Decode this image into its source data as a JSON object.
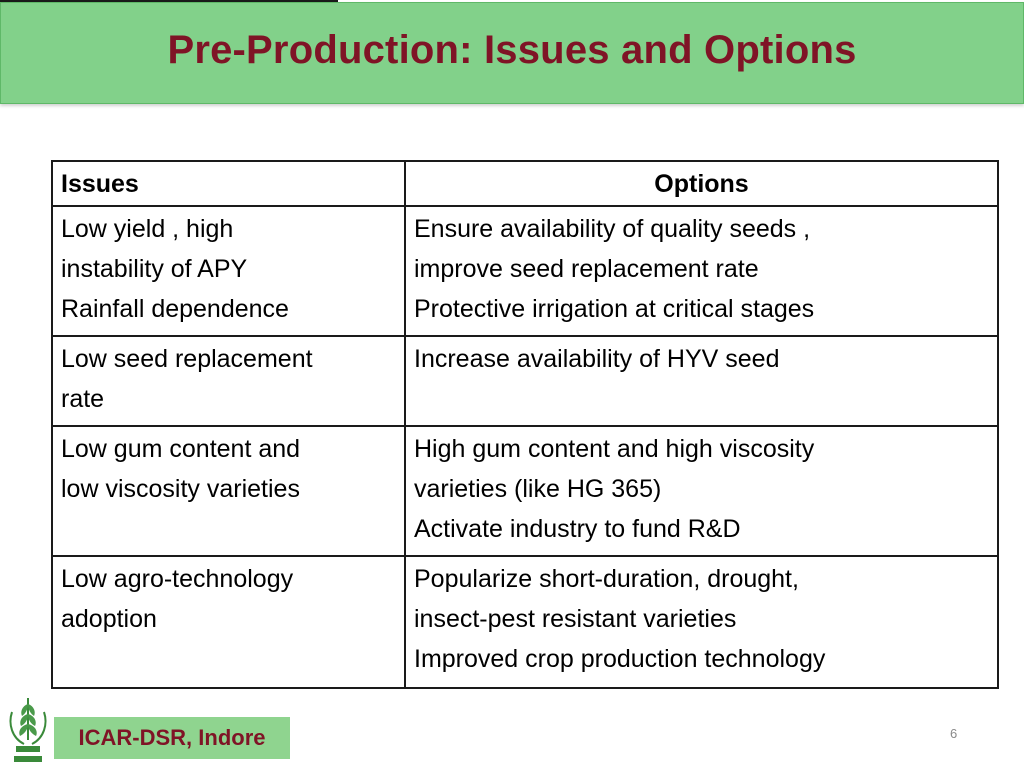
{
  "title": "Pre-Production: Issues and Options",
  "table": {
    "headers": {
      "issues": "Issues",
      "options": "Options"
    },
    "rows": [
      {
        "issue": [
          "Low yield , high",
          "instability of APY",
          "Rainfall dependence"
        ],
        "options": [
          "Ensure availability of quality seeds ,",
          "improve seed replacement rate",
          "Protective irrigation at critical stages"
        ]
      },
      {
        "issue": [
          "Low seed replacement",
          "rate"
        ],
        "options": [
          "Increase availability of  HYV seed"
        ]
      },
      {
        "issue": [
          "Low gum content and",
          "low viscosity varieties"
        ],
        "options": [
          "High gum content and high viscosity",
          "varieties (like HG 365)",
          "Activate industry to fund R&D"
        ]
      },
      {
        "issue": [
          "Low agro-technology",
          "adoption"
        ],
        "options": [
          "Popularize short-duration, drought,",
          "insect-pest resistant varieties",
          "Improved crop production technology"
        ]
      }
    ]
  },
  "footer": {
    "org": "ICAR-DSR, Indore",
    "logo_icon": "icar-wheat-logo-icon",
    "page_number": "6"
  },
  "colors": {
    "title_bar": "#82d18a",
    "title_text": "#7f1426",
    "footer_box": "#8fd48f"
  }
}
